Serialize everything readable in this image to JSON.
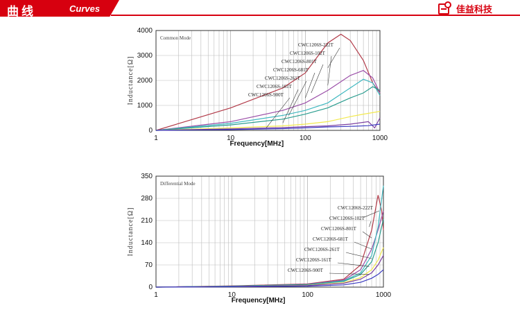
{
  "header": {
    "title": "曲线",
    "subtitle": "Curves",
    "brand": "佳益科技",
    "accent": "#d7000f"
  },
  "chart_data": [
    {
      "type": "line",
      "mode_label": "Common Mode",
      "xlabel": "Frequency[MHz]",
      "ylabel": "Inductance[Ω]",
      "xscale": "log",
      "xlim": [
        1,
        1000
      ],
      "ylim": [
        0,
        4000
      ],
      "xticks": [
        1,
        10,
        100,
        1000
      ],
      "yticks": [
        0,
        1000,
        2000,
        3000,
        4000
      ],
      "grid": true,
      "series": [
        {
          "name": "CWC1206S-222T",
          "color": "#b23a48",
          "label_at": [
            200,
            2500
          ],
          "points": [
            [
              1,
              0
            ],
            [
              10,
              900
            ],
            [
              50,
              1700
            ],
            [
              100,
              2300
            ],
            [
              200,
              3500
            ],
            [
              300,
              3850
            ],
            [
              400,
              3600
            ],
            [
              600,
              2800
            ],
            [
              800,
              1900
            ],
            [
              1000,
              1500
            ]
          ]
        },
        {
          "name": "CWC1206S-102T",
          "color": "#9b4fa8",
          "label_at": [
            200,
            1800
          ],
          "points": [
            [
              1,
              0
            ],
            [
              10,
              350
            ],
            [
              50,
              800
            ],
            [
              100,
              1100
            ],
            [
              200,
              1600
            ],
            [
              400,
              2200
            ],
            [
              600,
              2400
            ],
            [
              800,
              2100
            ],
            [
              1000,
              1500
            ]
          ]
        },
        {
          "name": "CWC1206S-801T",
          "color": "#3fb8c0",
          "label_at": [
            120,
            1500
          ],
          "points": [
            [
              1,
              0
            ],
            [
              10,
              280
            ],
            [
              50,
              600
            ],
            [
              100,
              800
            ],
            [
              200,
              1100
            ],
            [
              400,
              1700
            ],
            [
              600,
              2050
            ],
            [
              800,
              1900
            ],
            [
              1000,
              1400
            ]
          ]
        },
        {
          "name": "CWC1206S-681T",
          "color": "#2a9d8f",
          "label_at": [
            100,
            1300
          ],
          "points": [
            [
              1,
              0
            ],
            [
              10,
              220
            ],
            [
              50,
              450
            ],
            [
              100,
              650
            ],
            [
              200,
              900
            ],
            [
              400,
              1300
            ],
            [
              600,
              1500
            ],
            [
              800,
              1750
            ],
            [
              1000,
              1600
            ]
          ]
        },
        {
          "name": "CWC1206S-261T",
          "color": "#f2e94e",
          "label_at": [
            60,
            600
          ],
          "points": [
            [
              1,
              0
            ],
            [
              10,
              100
            ],
            [
              50,
              180
            ],
            [
              100,
              250
            ],
            [
              200,
              350
            ],
            [
              400,
              550
            ],
            [
              600,
              650
            ],
            [
              1000,
              760
            ]
          ]
        },
        {
          "name": "CWC1206S-161T",
          "color": "#7b3fa0",
          "label_at": [
            50,
            300
          ],
          "points": [
            [
              1,
              0
            ],
            [
              10,
              60
            ],
            [
              50,
              110
            ],
            [
              100,
              150
            ],
            [
              200,
              180
            ],
            [
              400,
              250
            ],
            [
              700,
              350
            ],
            [
              850,
              100
            ],
            [
              1000,
              500
            ]
          ]
        },
        {
          "name": "CWC1206S-900T",
          "color": "#3a3ac0",
          "label_at": [
            30,
            100
          ],
          "points": [
            [
              1,
              0
            ],
            [
              10,
              30
            ],
            [
              50,
              70
            ],
            [
              100,
              100
            ],
            [
              200,
              140
            ],
            [
              400,
              160
            ],
            [
              700,
              190
            ],
            [
              1000,
              250
            ]
          ]
        }
      ]
    },
    {
      "type": "line",
      "mode_label": "Differential Mode",
      "xlabel": "Frequency[MHz]",
      "ylabel": "Inductance[Ω]",
      "xscale": "log",
      "xlim": [
        1,
        1000
      ],
      "ylim": [
        0,
        350
      ],
      "xticks": [
        1,
        10,
        100,
        1000
      ],
      "yticks": [
        0,
        70,
        140,
        210,
        280,
        350
      ],
      "grid": true,
      "series": [
        {
          "name": "CWC1206S-222T",
          "color": "#b23a48",
          "label_at": [
            550,
            220
          ],
          "points": [
            [
              1,
              0
            ],
            [
              10,
              4
            ],
            [
              100,
              10
            ],
            [
              300,
              25
            ],
            [
              500,
              70
            ],
            [
              700,
              180
            ],
            [
              850,
              290
            ],
            [
              950,
              240
            ],
            [
              1000,
              180
            ]
          ]
        },
        {
          "name": "CWC1206S-102T",
          "color": "#9b4fa8",
          "label_at": [
            650,
            190
          ],
          "points": [
            [
              1,
              0
            ],
            [
              10,
              3
            ],
            [
              100,
              9
            ],
            [
              300,
              22
            ],
            [
              500,
              55
            ],
            [
              700,
              120
            ],
            [
              850,
              180
            ],
            [
              1000,
              240
            ]
          ]
        },
        {
          "name": "CWC1206S-801T",
          "color": "#3fb8c0",
          "label_at": [
            700,
            155
          ],
          "points": [
            [
              1,
              0
            ],
            [
              10,
              3
            ],
            [
              100,
              8
            ],
            [
              300,
              20
            ],
            [
              500,
              45
            ],
            [
              700,
              100
            ],
            [
              850,
              190
            ],
            [
              1000,
              320
            ]
          ]
        },
        {
          "name": "CWC1206S-681T",
          "color": "#2a9d8f",
          "label_at": [
            700,
            120
          ],
          "points": [
            [
              1,
              0
            ],
            [
              10,
              3
            ],
            [
              100,
              8
            ],
            [
              300,
              18
            ],
            [
              500,
              40
            ],
            [
              700,
              80
            ],
            [
              850,
              140
            ],
            [
              1000,
              215
            ]
          ]
        },
        {
          "name": "CWC1206S-261T",
          "color": "#f2e94e",
          "label_at": [
            700,
            90
          ],
          "points": [
            [
              1,
              0
            ],
            [
              10,
              2
            ],
            [
              100,
              6
            ],
            [
              300,
              14
            ],
            [
              500,
              30
            ],
            [
              700,
              55
            ],
            [
              850,
              85
            ],
            [
              1000,
              125
            ]
          ]
        },
        {
          "name": "CWC1206S-161T",
          "color": "#7b3fa0",
          "label_at": [
            650,
            65
          ],
          "points": [
            [
              1,
              0
            ],
            [
              10,
              2
            ],
            [
              100,
              5
            ],
            [
              300,
              12
            ],
            [
              500,
              25
            ],
            [
              700,
              45
            ],
            [
              850,
              70
            ],
            [
              1000,
              100
            ]
          ]
        },
        {
          "name": "CWC1206S-900T",
          "color": "#3a3ac0",
          "label_at": [
            650,
            40
          ],
          "points": [
            [
              1,
              0
            ],
            [
              10,
              1
            ],
            [
              100,
              3
            ],
            [
              300,
              7
            ],
            [
              500,
              15
            ],
            [
              700,
              28
            ],
            [
              850,
              40
            ],
            [
              1000,
              55
            ]
          ]
        }
      ]
    }
  ]
}
